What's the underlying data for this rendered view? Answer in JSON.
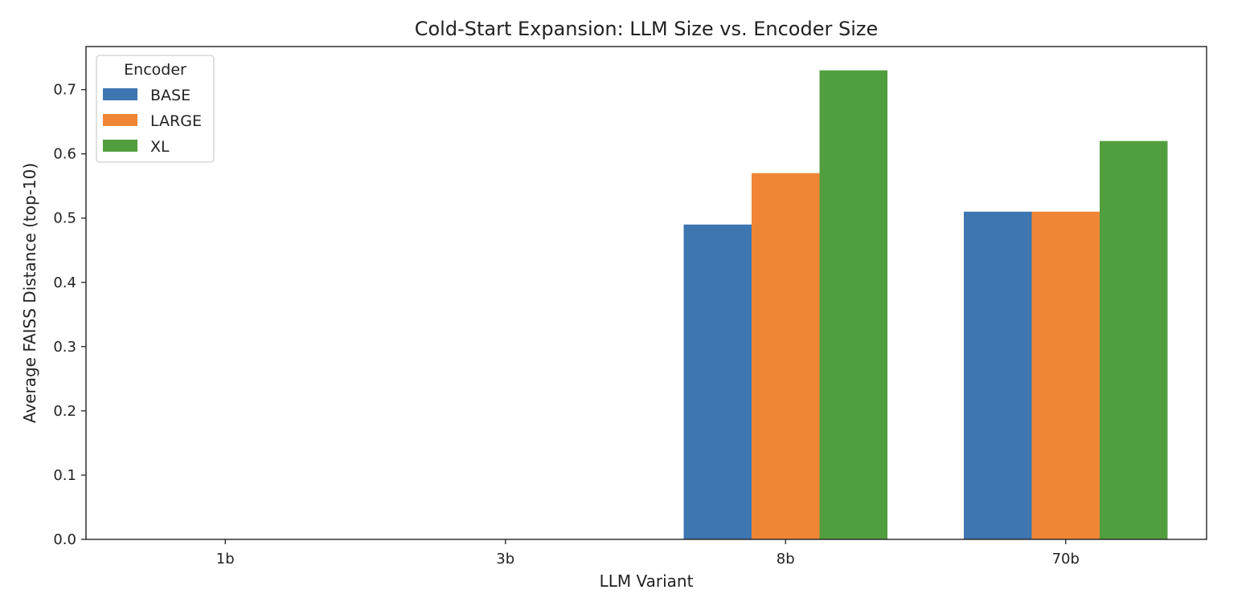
{
  "chart_data": {
    "type": "bar",
    "title": "Cold-Start Expansion: LLM Size vs. Encoder Size",
    "xlabel": "LLM Variant",
    "ylabel": "Average FAISS Distance (top-10)",
    "categories": [
      "1b",
      "3b",
      "8b",
      "70b"
    ],
    "series": [
      {
        "name": "BASE",
        "color": "#3d76b0",
        "values": [
          null,
          null,
          0.49,
          0.51
        ]
      },
      {
        "name": "LARGE",
        "color": "#ef8636",
        "values": [
          null,
          null,
          0.57,
          0.51
        ]
      },
      {
        "name": "XL",
        "color": "#519e3e",
        "values": [
          null,
          null,
          0.73,
          0.62
        ]
      }
    ],
    "ylim": [
      0,
      0.767
    ],
    "yticks": [
      0.0,
      0.1,
      0.2,
      0.3,
      0.4,
      0.5,
      0.6,
      0.7
    ],
    "ytick_labels": [
      "0.0",
      "0.1",
      "0.2",
      "0.3",
      "0.4",
      "0.5",
      "0.6",
      "0.7"
    ],
    "grid": false,
    "legend": {
      "title": "Encoder",
      "placement": "top-left"
    }
  }
}
